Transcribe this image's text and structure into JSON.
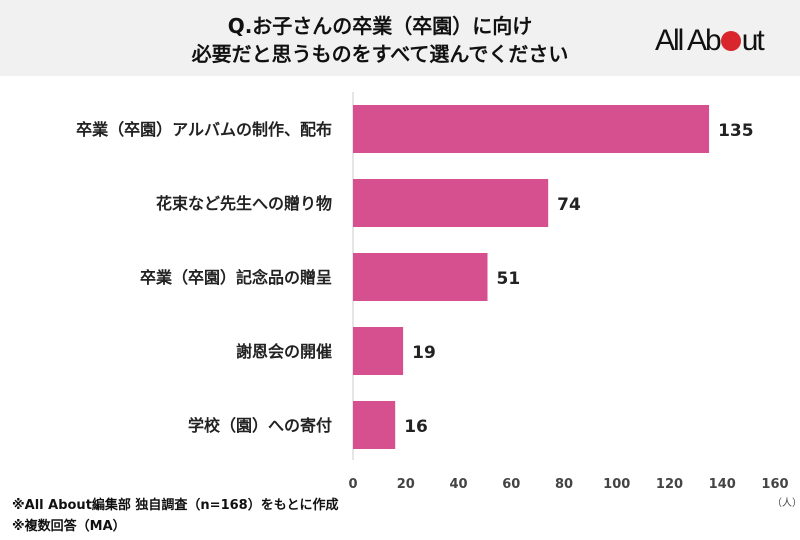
{
  "header": {
    "title_line1": "Q.お子さんの卒業（卒園）に向け",
    "title_line2": "必要だと思うものをすべて選んでください",
    "logo": "All About"
  },
  "chart_data": {
    "type": "bar",
    "orientation": "horizontal",
    "categories": [
      "卒業（卒園）アルバムの制作、配布",
      "花束など先生への贈り物",
      "卒業（卒園）記念品の贈呈",
      "謝恩会の開催",
      "学校（園）への寄付"
    ],
    "values": [
      135,
      74,
      51,
      19,
      16
    ],
    "xlim": [
      0,
      160
    ],
    "ticks": [
      0,
      20,
      40,
      60,
      80,
      100,
      120,
      140,
      160
    ],
    "unit": "（人）",
    "grid": false,
    "bar_color": "#d6508f"
  },
  "notes": [
    "※All About編集部 独自調査（n=168）をもとに作成",
    "※複数回答（MA）"
  ]
}
